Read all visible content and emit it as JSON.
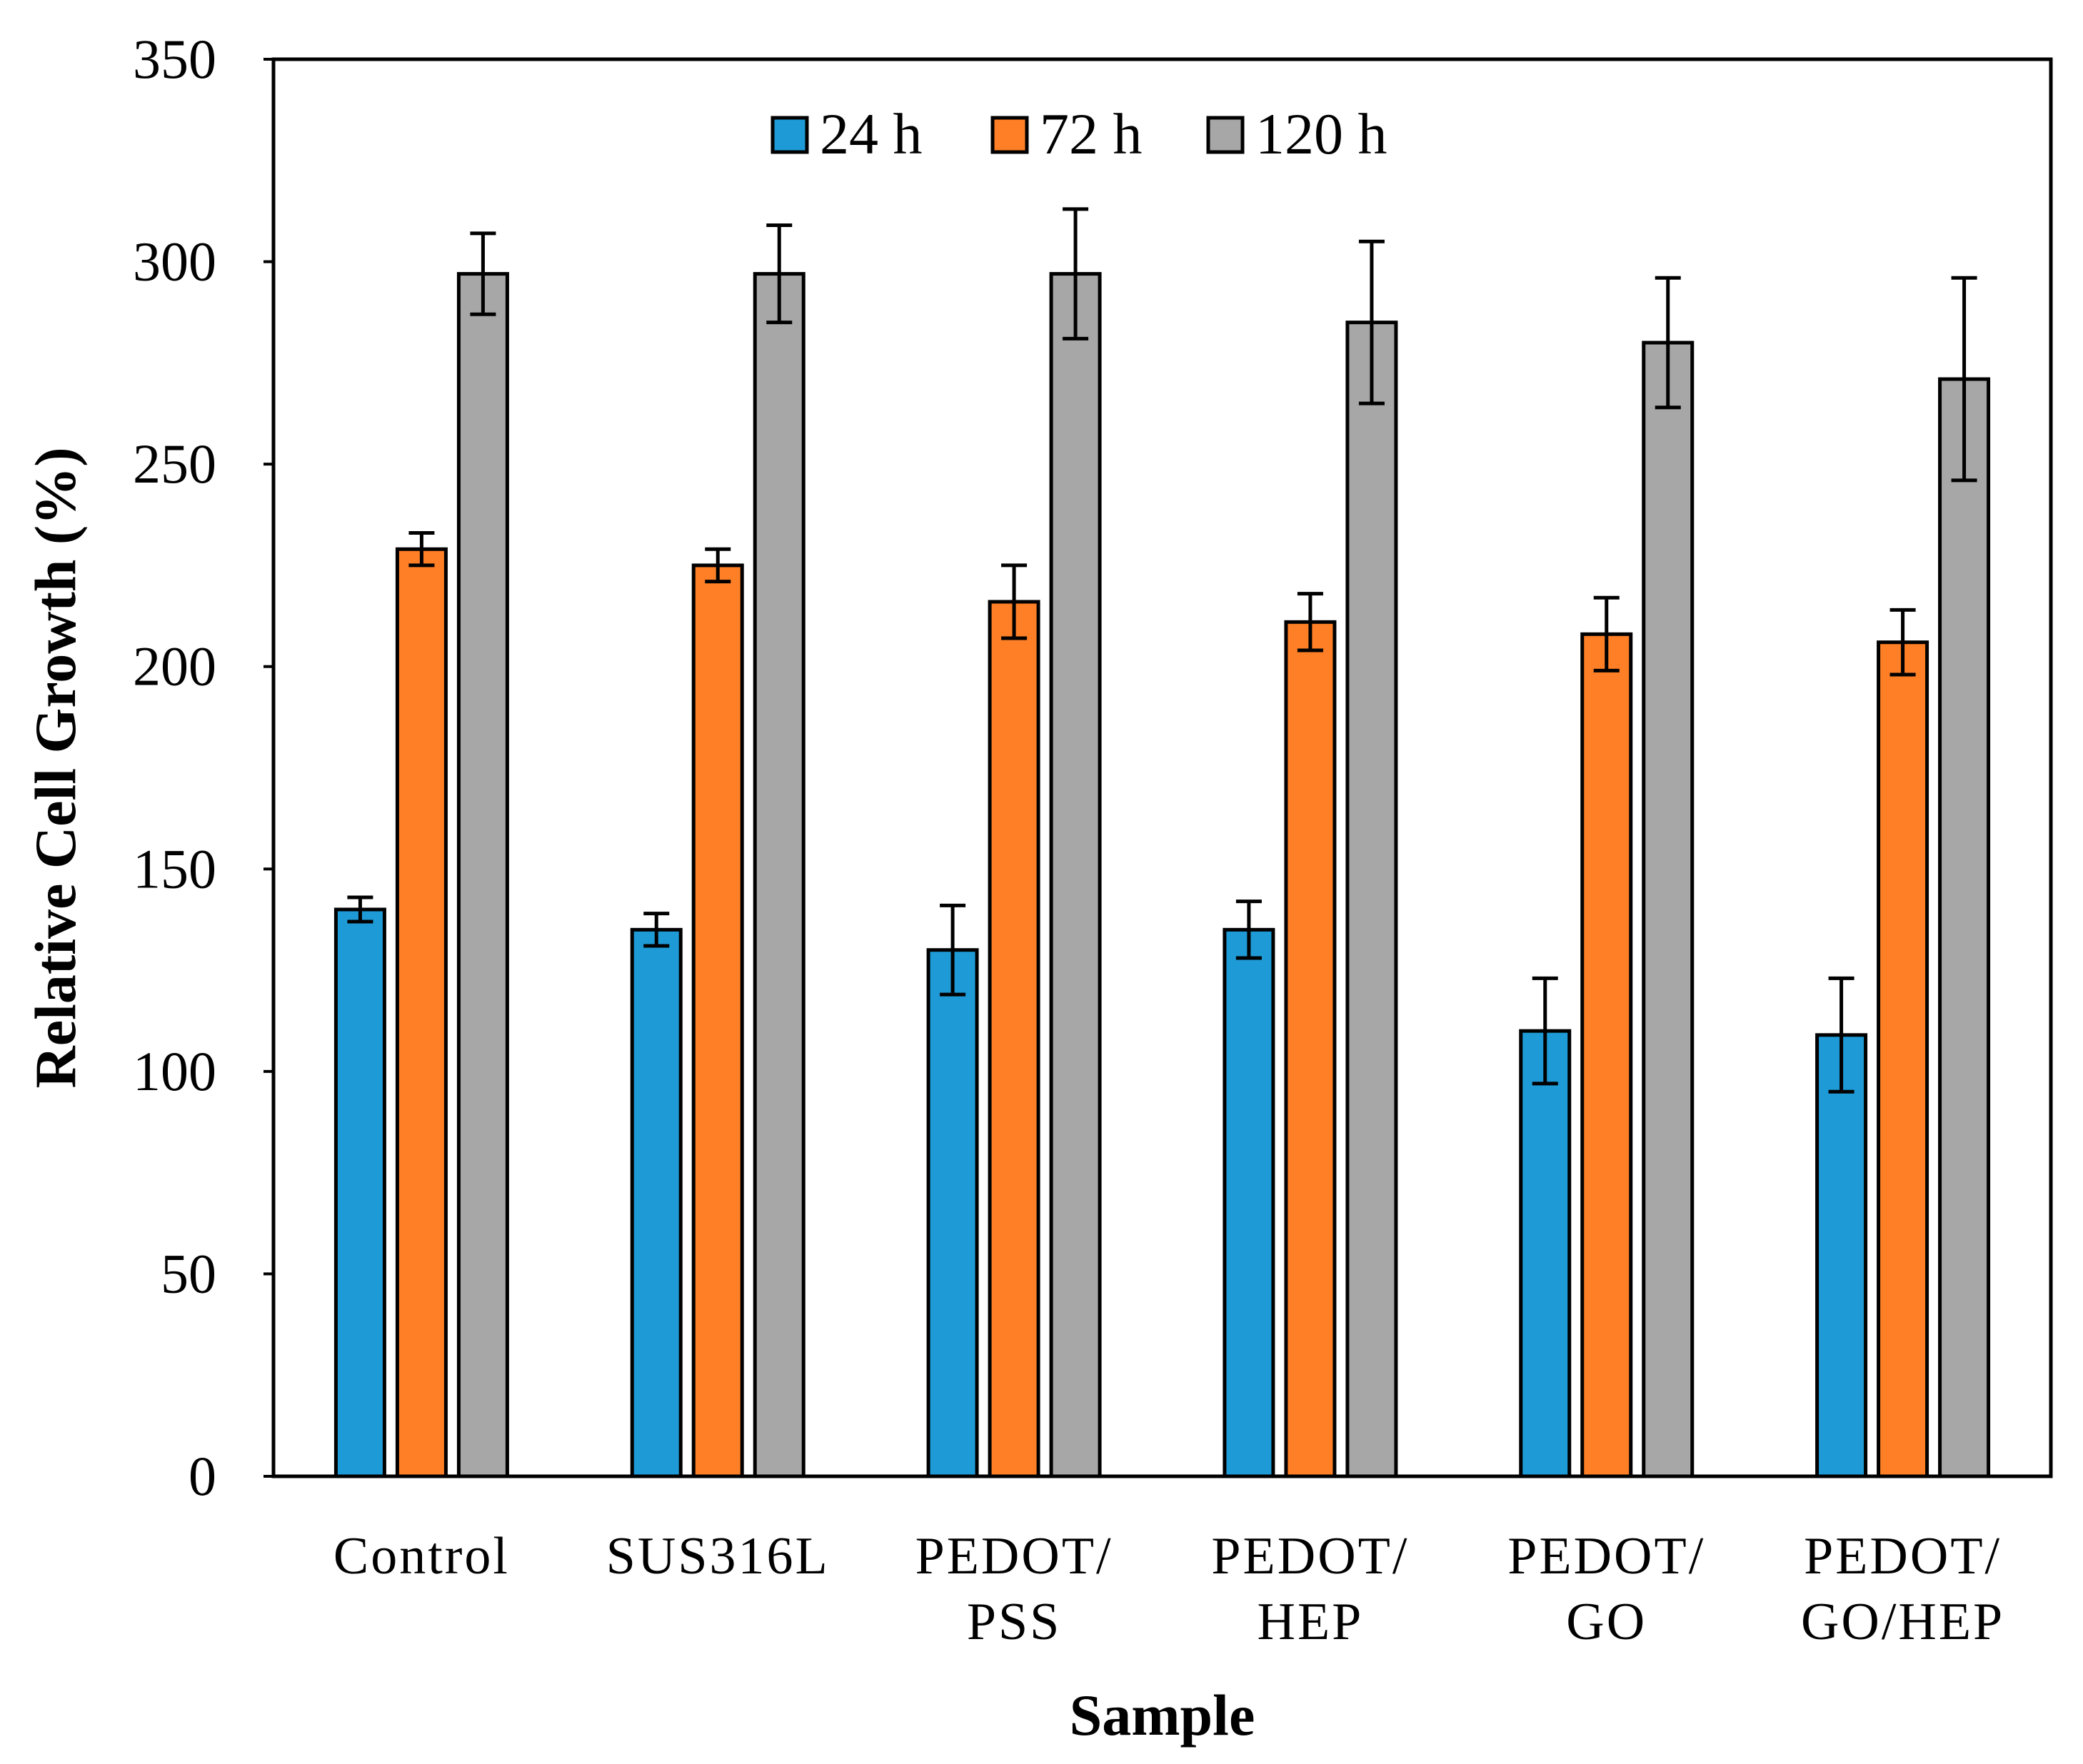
{
  "chart_data": {
    "type": "bar",
    "title": "",
    "xlabel": "Sample",
    "ylabel": "Relative Cell Growth  (%)",
    "ylim": [
      0,
      350
    ],
    "yticks": [
      0,
      50,
      100,
      150,
      200,
      250,
      300,
      350
    ],
    "grid": false,
    "legend_position": "top-center",
    "categories": [
      [
        "Control"
      ],
      [
        "SUS316L"
      ],
      [
        "PEDOT/",
        "PSS"
      ],
      [
        "PEDOT/",
        "HEP"
      ],
      [
        "PEDOT/",
        "GO"
      ],
      [
        "PEDOT/",
        "GO/HEP"
      ]
    ],
    "series": [
      {
        "name": "24 h",
        "color": "#1e9bd7",
        "values": [
          140,
          135,
          130,
          135,
          110,
          109
        ],
        "errors": [
          3,
          4,
          11,
          7,
          13,
          14
        ]
      },
      {
        "name": "72 h",
        "color": "#fe7f25",
        "values": [
          229,
          225,
          216,
          211,
          208,
          206
        ],
        "errors": [
          4,
          4,
          9,
          7,
          9,
          8
        ]
      },
      {
        "name": "120 h",
        "color": "#a7a7a7",
        "values": [
          297,
          297,
          297,
          285,
          280,
          271
        ],
        "errors": [
          10,
          12,
          16,
          20,
          16,
          25
        ]
      }
    ]
  }
}
